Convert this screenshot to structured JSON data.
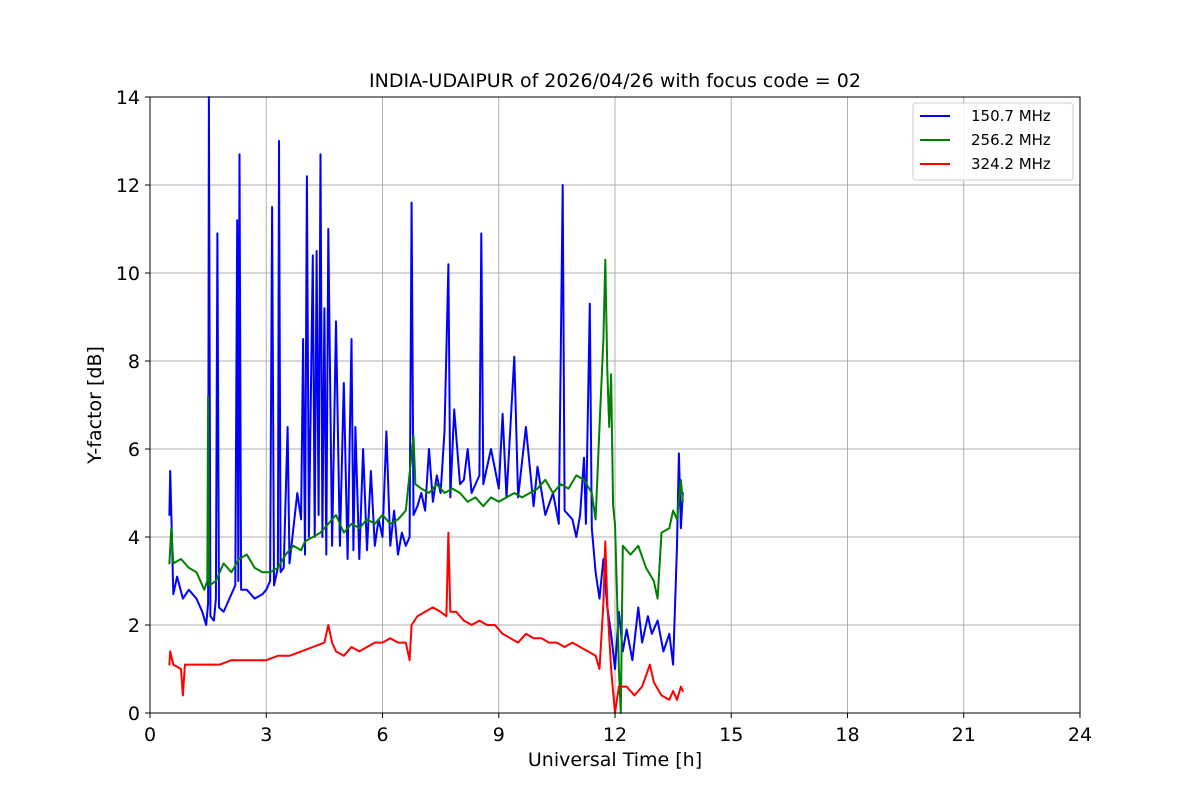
{
  "chart_data": {
    "type": "line",
    "title": "INDIA-UDAIPUR of 2026/04/26 with focus code = 02",
    "xlabel": "Universal Time [h]",
    "ylabel": "Y-factor [dB]",
    "xlim": [
      0,
      24
    ],
    "ylim": [
      0,
      14
    ],
    "xticks": [
      0,
      3,
      6,
      9,
      12,
      15,
      18,
      21,
      24
    ],
    "yticks": [
      0,
      2,
      4,
      6,
      8,
      10,
      12,
      14
    ],
    "grid": true,
    "legend_position": "top-right",
    "series": [
      {
        "name": "150.7 MHz",
        "color": "#0000ff",
        "points": [
          [
            0.5,
            4.5
          ],
          [
            0.52,
            5.5
          ],
          [
            0.56,
            4.2
          ],
          [
            0.6,
            2.7
          ],
          [
            0.7,
            3.1
          ],
          [
            0.85,
            2.6
          ],
          [
            1.0,
            2.8
          ],
          [
            1.2,
            2.6
          ],
          [
            1.35,
            2.3
          ],
          [
            1.45,
            2.0
          ],
          [
            1.5,
            2.5
          ],
          [
            1.52,
            14.0
          ],
          [
            1.56,
            2.2
          ],
          [
            1.65,
            2.1
          ],
          [
            1.7,
            2.6
          ],
          [
            1.74,
            10.9
          ],
          [
            1.78,
            2.4
          ],
          [
            1.9,
            2.3
          ],
          [
            2.0,
            2.5
          ],
          [
            2.1,
            2.7
          ],
          [
            2.2,
            2.9
          ],
          [
            2.25,
            11.2
          ],
          [
            2.28,
            3.0
          ],
          [
            2.31,
            12.7
          ],
          [
            2.35,
            2.8
          ],
          [
            2.5,
            2.8
          ],
          [
            2.7,
            2.6
          ],
          [
            2.9,
            2.7
          ],
          [
            3.0,
            2.8
          ],
          [
            3.1,
            3.0
          ],
          [
            3.15,
            11.5
          ],
          [
            3.2,
            2.9
          ],
          [
            3.3,
            3.3
          ],
          [
            3.33,
            13.0
          ],
          [
            3.37,
            3.2
          ],
          [
            3.45,
            3.3
          ],
          [
            3.55,
            6.5
          ],
          [
            3.6,
            3.4
          ],
          [
            3.7,
            4.2
          ],
          [
            3.8,
            5.0
          ],
          [
            3.9,
            4.4
          ],
          [
            3.95,
            8.5
          ],
          [
            4.0,
            3.6
          ],
          [
            4.05,
            12.2
          ],
          [
            4.1,
            4.0
          ],
          [
            4.2,
            10.4
          ],
          [
            4.25,
            4.0
          ],
          [
            4.3,
            10.5
          ],
          [
            4.35,
            4.5
          ],
          [
            4.4,
            12.7
          ],
          [
            4.45,
            4.0
          ],
          [
            4.5,
            9.2
          ],
          [
            4.55,
            3.6
          ],
          [
            4.6,
            11.0
          ],
          [
            4.7,
            3.8
          ],
          [
            4.8,
            8.9
          ],
          [
            4.9,
            3.8
          ],
          [
            5.0,
            7.5
          ],
          [
            5.1,
            3.5
          ],
          [
            5.2,
            8.5
          ],
          [
            5.25,
            3.7
          ],
          [
            5.3,
            6.5
          ],
          [
            5.4,
            3.5
          ],
          [
            5.5,
            6.0
          ],
          [
            5.6,
            3.7
          ],
          [
            5.7,
            5.5
          ],
          [
            5.8,
            3.8
          ],
          [
            5.9,
            4.4
          ],
          [
            6.0,
            4.0
          ],
          [
            6.1,
            6.4
          ],
          [
            6.2,
            3.8
          ],
          [
            6.3,
            4.6
          ],
          [
            6.4,
            3.6
          ],
          [
            6.5,
            4.1
          ],
          [
            6.6,
            3.8
          ],
          [
            6.7,
            4.0
          ],
          [
            6.75,
            11.6
          ],
          [
            6.8,
            4.5
          ],
          [
            6.9,
            4.7
          ],
          [
            7.0,
            5.0
          ],
          [
            7.1,
            4.6
          ],
          [
            7.2,
            6.0
          ],
          [
            7.3,
            4.8
          ],
          [
            7.4,
            5.4
          ],
          [
            7.5,
            5.0
          ],
          [
            7.6,
            6.4
          ],
          [
            7.7,
            10.2
          ],
          [
            7.75,
            4.9
          ],
          [
            7.85,
            6.9
          ],
          [
            8.0,
            5.2
          ],
          [
            8.1,
            5.3
          ],
          [
            8.2,
            6.0
          ],
          [
            8.3,
            5.0
          ],
          [
            8.5,
            5.4
          ],
          [
            8.55,
            10.9
          ],
          [
            8.6,
            5.2
          ],
          [
            8.8,
            6.0
          ],
          [
            9.0,
            5.1
          ],
          [
            9.1,
            6.8
          ],
          [
            9.2,
            4.9
          ],
          [
            9.4,
            8.1
          ],
          [
            9.5,
            4.9
          ],
          [
            9.7,
            6.5
          ],
          [
            9.9,
            4.7
          ],
          [
            10.0,
            5.6
          ],
          [
            10.2,
            4.5
          ],
          [
            10.4,
            5.0
          ],
          [
            10.55,
            4.3
          ],
          [
            10.65,
            12.0
          ],
          [
            10.7,
            4.6
          ],
          [
            10.9,
            4.4
          ],
          [
            11.0,
            4.0
          ],
          [
            11.1,
            4.5
          ],
          [
            11.2,
            5.8
          ],
          [
            11.25,
            4.3
          ],
          [
            11.35,
            9.3
          ],
          [
            11.4,
            4.2
          ],
          [
            11.5,
            3.2
          ],
          [
            11.6,
            2.6
          ],
          [
            11.7,
            3.5
          ],
          [
            11.8,
            2.4
          ],
          [
            11.9,
            1.8
          ],
          [
            12.0,
            1.0
          ],
          [
            12.1,
            2.3
          ],
          [
            12.2,
            1.4
          ],
          [
            12.3,
            1.9
          ],
          [
            12.45,
            1.2
          ],
          [
            12.6,
            2.4
          ],
          [
            12.7,
            1.6
          ],
          [
            12.85,
            2.2
          ],
          [
            12.95,
            1.8
          ],
          [
            13.1,
            2.1
          ],
          [
            13.25,
            1.4
          ],
          [
            13.4,
            1.8
          ],
          [
            13.5,
            1.1
          ],
          [
            13.6,
            3.8
          ],
          [
            13.65,
            5.9
          ],
          [
            13.7,
            4.2
          ],
          [
            13.75,
            5.0
          ]
        ]
      },
      {
        "name": "256.2 MHz",
        "color": "#008000",
        "points": [
          [
            0.5,
            3.4
          ],
          [
            0.55,
            4.2
          ],
          [
            0.6,
            3.4
          ],
          [
            0.8,
            3.5
          ],
          [
            1.0,
            3.3
          ],
          [
            1.2,
            3.2
          ],
          [
            1.4,
            2.8
          ],
          [
            1.48,
            3.0
          ],
          [
            1.5,
            7.2
          ],
          [
            1.53,
            2.9
          ],
          [
            1.7,
            3.0
          ],
          [
            1.9,
            3.4
          ],
          [
            2.1,
            3.2
          ],
          [
            2.3,
            3.5
          ],
          [
            2.5,
            3.6
          ],
          [
            2.7,
            3.3
          ],
          [
            2.9,
            3.2
          ],
          [
            3.1,
            3.2
          ],
          [
            3.3,
            3.3
          ],
          [
            3.5,
            3.6
          ],
          [
            3.7,
            3.8
          ],
          [
            3.9,
            3.7
          ],
          [
            4.0,
            3.9
          ],
          [
            4.2,
            4.0
          ],
          [
            4.4,
            4.1
          ],
          [
            4.6,
            4.3
          ],
          [
            4.8,
            4.5
          ],
          [
            5.0,
            4.1
          ],
          [
            5.2,
            4.3
          ],
          [
            5.4,
            4.2
          ],
          [
            5.6,
            4.4
          ],
          [
            5.8,
            4.3
          ],
          [
            6.0,
            4.5
          ],
          [
            6.2,
            4.3
          ],
          [
            6.4,
            4.4
          ],
          [
            6.6,
            4.6
          ],
          [
            6.8,
            6.3
          ],
          [
            6.85,
            5.2
          ],
          [
            7.0,
            5.1
          ],
          [
            7.2,
            5.0
          ],
          [
            7.4,
            5.2
          ],
          [
            7.6,
            5.0
          ],
          [
            7.8,
            5.1
          ],
          [
            8.0,
            5.0
          ],
          [
            8.2,
            4.8
          ],
          [
            8.4,
            4.9
          ],
          [
            8.6,
            4.7
          ],
          [
            8.8,
            4.9
          ],
          [
            9.0,
            4.8
          ],
          [
            9.2,
            4.9
          ],
          [
            9.4,
            5.0
          ],
          [
            9.6,
            4.9
          ],
          [
            9.8,
            5.0
          ],
          [
            10.0,
            5.1
          ],
          [
            10.2,
            5.3
          ],
          [
            10.4,
            5.0
          ],
          [
            10.6,
            5.2
          ],
          [
            10.8,
            5.1
          ],
          [
            11.0,
            5.4
          ],
          [
            11.2,
            5.3
          ],
          [
            11.4,
            5.0
          ],
          [
            11.5,
            4.4
          ],
          [
            11.6,
            6.5
          ],
          [
            11.7,
            8.5
          ],
          [
            11.75,
            10.3
          ],
          [
            11.8,
            7.8
          ],
          [
            11.85,
            6.5
          ],
          [
            11.9,
            7.7
          ],
          [
            11.95,
            4.7
          ],
          [
            12.0,
            4.3
          ],
          [
            12.05,
            2.8
          ],
          [
            12.1,
            1.0
          ],
          [
            12.15,
            0.0
          ],
          [
            12.2,
            3.8
          ],
          [
            12.4,
            3.6
          ],
          [
            12.6,
            3.8
          ],
          [
            12.8,
            3.3
          ],
          [
            13.0,
            3.0
          ],
          [
            13.1,
            2.6
          ],
          [
            13.2,
            4.1
          ],
          [
            13.4,
            4.2
          ],
          [
            13.5,
            4.6
          ],
          [
            13.6,
            4.4
          ],
          [
            13.7,
            5.3
          ],
          [
            13.75,
            4.8
          ]
        ]
      },
      {
        "name": "324.2 MHz",
        "color": "#ff0000",
        "points": [
          [
            0.5,
            1.1
          ],
          [
            0.52,
            1.4
          ],
          [
            0.6,
            1.1
          ],
          [
            0.8,
            1.0
          ],
          [
            0.85,
            0.4
          ],
          [
            0.9,
            1.1
          ],
          [
            1.2,
            1.1
          ],
          [
            1.5,
            1.1
          ],
          [
            1.8,
            1.1
          ],
          [
            2.1,
            1.2
          ],
          [
            2.4,
            1.2
          ],
          [
            2.7,
            1.2
          ],
          [
            3.0,
            1.2
          ],
          [
            3.3,
            1.3
          ],
          [
            3.6,
            1.3
          ],
          [
            3.9,
            1.4
          ],
          [
            4.2,
            1.5
          ],
          [
            4.5,
            1.6
          ],
          [
            4.6,
            2.0
          ],
          [
            4.7,
            1.6
          ],
          [
            4.8,
            1.4
          ],
          [
            5.0,
            1.3
          ],
          [
            5.2,
            1.5
          ],
          [
            5.4,
            1.4
          ],
          [
            5.6,
            1.5
          ],
          [
            5.8,
            1.6
          ],
          [
            6.0,
            1.6
          ],
          [
            6.2,
            1.7
          ],
          [
            6.4,
            1.6
          ],
          [
            6.6,
            1.6
          ],
          [
            6.7,
            1.2
          ],
          [
            6.75,
            2.0
          ],
          [
            6.9,
            2.2
          ],
          [
            7.1,
            2.3
          ],
          [
            7.3,
            2.4
          ],
          [
            7.5,
            2.3
          ],
          [
            7.65,
            2.2
          ],
          [
            7.7,
            4.1
          ],
          [
            7.75,
            2.3
          ],
          [
            7.9,
            2.3
          ],
          [
            8.1,
            2.1
          ],
          [
            8.3,
            2.0
          ],
          [
            8.5,
            2.1
          ],
          [
            8.7,
            2.0
          ],
          [
            8.9,
            2.0
          ],
          [
            9.1,
            1.8
          ],
          [
            9.3,
            1.7
          ],
          [
            9.5,
            1.6
          ],
          [
            9.7,
            1.8
          ],
          [
            9.9,
            1.7
          ],
          [
            10.1,
            1.7
          ],
          [
            10.3,
            1.6
          ],
          [
            10.5,
            1.6
          ],
          [
            10.7,
            1.5
          ],
          [
            10.9,
            1.6
          ],
          [
            11.1,
            1.5
          ],
          [
            11.3,
            1.4
          ],
          [
            11.5,
            1.3
          ],
          [
            11.6,
            1.0
          ],
          [
            11.7,
            2.5
          ],
          [
            11.75,
            3.9
          ],
          [
            11.8,
            2.5
          ],
          [
            11.9,
            1.0
          ],
          [
            12.0,
            0.0
          ],
          [
            12.1,
            0.6
          ],
          [
            12.3,
            0.6
          ],
          [
            12.5,
            0.4
          ],
          [
            12.7,
            0.6
          ],
          [
            12.9,
            1.1
          ],
          [
            13.0,
            0.7
          ],
          [
            13.2,
            0.4
          ],
          [
            13.4,
            0.3
          ],
          [
            13.5,
            0.5
          ],
          [
            13.6,
            0.3
          ],
          [
            13.7,
            0.6
          ],
          [
            13.75,
            0.5
          ]
        ]
      }
    ]
  }
}
